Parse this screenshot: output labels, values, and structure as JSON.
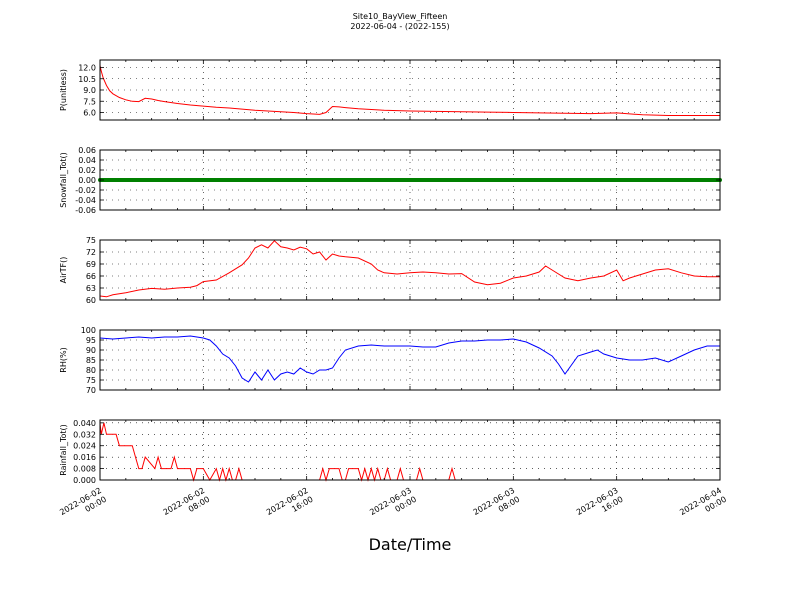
{
  "figure": {
    "title_line1": "Site10_BayView_Fifteen",
    "title_line2": "2022-06-04 - (2022-155)",
    "xlabel": "Date/Time"
  },
  "chart_data": [
    {
      "type": "line",
      "ylabel": "P(unitless)",
      "ylim": [
        5.0,
        13.0
      ],
      "yticks": [
        "12.0",
        "10.5",
        "9.0",
        "7.5",
        "6.0"
      ],
      "ytick_values": [
        12.0,
        10.5,
        9.0,
        7.5,
        6.0
      ],
      "grid": true,
      "color": "#ff0000",
      "x": [
        0,
        0.1,
        0.25,
        0.5,
        0.75,
        1.0,
        1.5,
        2.0,
        2.5,
        3.0,
        3.5,
        4.0,
        4.5,
        5.0,
        6.0,
        7.0,
        8.0,
        9.0,
        10.0,
        11.0,
        12.0,
        13.0,
        14.0,
        15.0,
        16.0,
        17.0,
        17.5,
        18.0,
        18.5,
        19.0,
        20.0,
        21.0,
        22.0,
        24.0,
        26.0,
        28.0,
        30.0,
        32.0,
        34.0,
        36.0,
        38.0,
        40.0,
        42.0,
        44.0,
        46.0,
        48.0
      ],
      "y": [
        12.3,
        11.5,
        10.6,
        9.6,
        8.9,
        8.5,
        8.0,
        7.7,
        7.5,
        7.45,
        7.9,
        7.8,
        7.6,
        7.45,
        7.2,
        7.0,
        6.85,
        6.7,
        6.6,
        6.45,
        6.3,
        6.2,
        6.1,
        6.0,
        5.85,
        5.75,
        6.0,
        6.8,
        6.75,
        6.65,
        6.5,
        6.4,
        6.3,
        6.2,
        6.15,
        6.1,
        6.05,
        6.0,
        5.95,
        5.9,
        5.85,
        5.95,
        5.7,
        5.6,
        5.6,
        5.6
      ],
      "xticks": [
        "2022-06-02\n00:00",
        "2022-06-02\n08:00",
        "2022-06-02\n16:00",
        "2022-06-03\n00:00",
        "2022-06-03\n08:00",
        "2022-06-03\n16:00",
        "2022-06-04\n00:00"
      ]
    },
    {
      "type": "line",
      "ylabel": "Snowfall_Tot()",
      "ylim": [
        -0.06,
        0.06
      ],
      "yticks": [
        "0.06",
        "0.04",
        "0.02",
        "0.00",
        "-0.02",
        "-0.04",
        "-0.06"
      ],
      "ytick_values": [
        0.06,
        0.04,
        0.02,
        0.0,
        -0.02,
        -0.04,
        -0.06
      ],
      "grid": true,
      "color": "#008000",
      "x": [
        0,
        48
      ],
      "y": [
        0.0,
        0.0
      ],
      "xticks": [
        "2022-06-02\n00:00",
        "2022-06-02\n08:00",
        "2022-06-02\n16:00",
        "2022-06-03\n00:00",
        "2022-06-03\n08:00",
        "2022-06-03\n16:00",
        "2022-06-04\n00:00"
      ]
    },
    {
      "type": "line",
      "ylabel": "AirTF()",
      "ylim": [
        60,
        75
      ],
      "yticks": [
        "75",
        "72",
        "69",
        "66",
        "63",
        "60"
      ],
      "ytick_values": [
        75,
        72,
        69,
        66,
        63,
        60
      ],
      "grid": true,
      "color": "#ff0000",
      "x": [
        0,
        0.5,
        1.0,
        2.0,
        3.0,
        4.0,
        5.0,
        6.0,
        7.0,
        7.5,
        8.0,
        9.0,
        10.0,
        11.0,
        11.5,
        12.0,
        12.5,
        13.0,
        13.5,
        14.0,
        14.5,
        15.0,
        15.5,
        16.0,
        16.5,
        17.0,
        17.5,
        18.0,
        18.5,
        19.0,
        20.0,
        21.0,
        21.5,
        22.0,
        23.0,
        24.0,
        25.0,
        26.0,
        27.0,
        28.0,
        29.0,
        30.0,
        31.0,
        32.0,
        33.0,
        34.0,
        34.5,
        35.0,
        36.0,
        37.0,
        38.0,
        39.0,
        40.0,
        40.5,
        41.0,
        42.0,
        43.0,
        44.0,
        45.0,
        46.0,
        47.0,
        48.0
      ],
      "y": [
        61.0,
        60.8,
        61.3,
        61.8,
        62.5,
        62.9,
        62.7,
        63.0,
        63.2,
        63.6,
        64.6,
        65.0,
        66.8,
        68.8,
        70.5,
        73.0,
        73.8,
        73.0,
        74.8,
        73.3,
        73.0,
        72.5,
        73.2,
        72.8,
        71.5,
        72.0,
        70.0,
        71.5,
        71.0,
        70.8,
        70.5,
        69.0,
        67.5,
        66.8,
        66.5,
        66.8,
        67.0,
        66.8,
        66.5,
        66.6,
        64.5,
        63.8,
        64.2,
        65.5,
        66.0,
        67.0,
        68.5,
        67.5,
        65.5,
        64.8,
        65.5,
        66.0,
        67.5,
        64.8,
        65.5,
        66.5,
        67.5,
        67.8,
        66.8,
        66.0,
        65.8,
        65.8
      ],
      "xticks": [
        "2022-06-02\n00:00",
        "2022-06-02\n08:00",
        "2022-06-02\n16:00",
        "2022-06-03\n00:00",
        "2022-06-03\n08:00",
        "2022-06-03\n16:00",
        "2022-06-04\n00:00"
      ]
    },
    {
      "type": "line",
      "ylabel": "RH(%)",
      "ylim": [
        70,
        100
      ],
      "yticks": [
        "100",
        "95",
        "90",
        "85",
        "80",
        "75",
        "70"
      ],
      "ytick_values": [
        100,
        95,
        90,
        85,
        80,
        75,
        70
      ],
      "grid": true,
      "color": "#0000ff",
      "x": [
        0,
        1.0,
        2.0,
        3.0,
        4.0,
        5.0,
        6.0,
        7.0,
        7.5,
        8.0,
        8.5,
        9.0,
        9.5,
        10.0,
        10.5,
        11.0,
        11.5,
        12.0,
        12.5,
        13.0,
        13.5,
        14.0,
        14.5,
        15.0,
        15.5,
        16.0,
        16.5,
        17.0,
        17.5,
        18.0,
        18.5,
        19.0,
        20.0,
        21.0,
        22.0,
        23.0,
        24.0,
        25.0,
        26.0,
        27.0,
        28.0,
        29.0,
        30.0,
        31.0,
        32.0,
        33.0,
        34.0,
        35.0,
        35.5,
        36.0,
        37.0,
        38.0,
        38.5,
        39.0,
        40.0,
        41.0,
        42.0,
        43.0,
        44.0,
        45.0,
        46.0,
        47.0,
        48.0
      ],
      "y": [
        96.0,
        95.5,
        96.0,
        96.5,
        96.0,
        96.5,
        96.5,
        97.0,
        96.5,
        96.0,
        95.0,
        92.0,
        88.0,
        86.0,
        82.0,
        76.0,
        74.0,
        79.0,
        75.0,
        80.0,
        75.0,
        78.0,
        79.0,
        78.0,
        81.0,
        79.0,
        78.0,
        80.0,
        80.0,
        81.0,
        86.0,
        90.0,
        92.0,
        92.5,
        92.0,
        92.0,
        92.0,
        91.5,
        91.5,
        93.5,
        94.5,
        94.5,
        95.0,
        95.0,
        95.5,
        94.0,
        91.0,
        87.0,
        83.0,
        78.0,
        87.0,
        89.0,
        90.0,
        88.0,
        86.0,
        85.0,
        85.0,
        86.0,
        84.0,
        87.0,
        90.0,
        92.0,
        92.0
      ],
      "xticks": [
        "2022-06-02\n00:00",
        "2022-06-02\n08:00",
        "2022-06-02\n16:00",
        "2022-06-03\n00:00",
        "2022-06-03\n08:00",
        "2022-06-03\n16:00",
        "2022-06-04\n00:00"
      ]
    },
    {
      "type": "line",
      "ylabel": "Rainfall_Tot()",
      "ylim": [
        0.0,
        0.042
      ],
      "yticks": [
        "0.040",
        "0.032",
        "0.024",
        "0.016",
        "0.008",
        "0.000"
      ],
      "ytick_values": [
        0.04,
        0.032,
        0.024,
        0.016,
        0.008,
        0.0
      ],
      "grid": true,
      "color": "#ff0000",
      "x": [
        0,
        0.1,
        0.3,
        0.5,
        1.0,
        1.25,
        1.5,
        2.5,
        2.75,
        3.0,
        3.25,
        3.5,
        4.25,
        4.5,
        4.75,
        5.5,
        5.75,
        6.0,
        7.0,
        7.25,
        7.5,
        7.75,
        8.0,
        8.5,
        9.0,
        9.25,
        9.5,
        9.75,
        10.0,
        10.25,
        10.5,
        10.75,
        11.0,
        11.25,
        17.0,
        17.25,
        17.5,
        17.75,
        18.5,
        18.75,
        19.0,
        19.25,
        20.0,
        20.25,
        20.5,
        20.75,
        21.0,
        21.25,
        21.5,
        21.75,
        22.0,
        22.25,
        22.5,
        22.75,
        23.0,
        23.25,
        23.5,
        24.5,
        24.75,
        25.0,
        27.0,
        27.25,
        27.5,
        48.0
      ],
      "y": [
        0.04,
        0.032,
        0.04,
        0.032,
        0.032,
        0.032,
        0.024,
        0.024,
        0.016,
        0.008,
        0.008,
        0.016,
        0.008,
        0.016,
        0.008,
        0.008,
        0.016,
        0.008,
        0.008,
        0.0,
        0.008,
        0.008,
        0.008,
        0.0,
        0.008,
        0.0,
        0.008,
        0.0,
        0.008,
        0.0,
        0.0,
        0.008,
        0.0,
        0.0,
        0.0,
        0.008,
        0.0,
        0.008,
        0.008,
        0.0,
        0.0,
        0.008,
        0.008,
        0.0,
        0.008,
        0.0,
        0.008,
        0.0,
        0.008,
        0.0,
        0.0,
        0.008,
        0.0,
        0.0,
        0.0,
        0.008,
        0.0,
        0.0,
        0.008,
        0.0,
        0.0,
        0.008,
        0.0,
        0.0
      ],
      "xticks": [
        "2022-06-02\n00:00",
        "2022-06-02\n08:00",
        "2022-06-02\n16:00",
        "2022-06-03\n00:00",
        "2022-06-03\n08:00",
        "2022-06-03\n16:00",
        "2022-06-04\n00:00"
      ]
    }
  ]
}
